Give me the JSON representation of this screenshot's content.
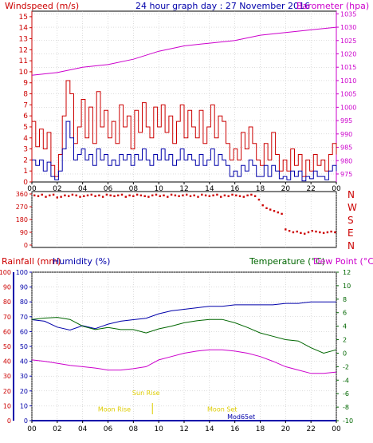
{
  "title": "24 hour graph day : 27 November 2016",
  "colors": {
    "red": "#cc0000",
    "blue": "#0000aa",
    "magenta": "#cc00cc",
    "green": "#006600",
    "rainblue": "#0000aa",
    "yellow": "#ddcc00",
    "grid": "#bbbbbb",
    "frame": "#000000"
  },
  "x_tick_labels": [
    "00",
    "02",
    "04",
    "06",
    "08",
    "10",
    "12",
    "14",
    "16",
    "18",
    "20",
    "22",
    "00"
  ],
  "chart_data": [
    {
      "type": "line",
      "name": "wind",
      "ylabel_left": "Windspeed (m/s)",
      "ylabel_right": "Barometer (hpa)",
      "left_ticks": [
        "0",
        "1",
        "2",
        "3",
        "4",
        "5",
        "6",
        "7",
        "8",
        "9",
        "10",
        "11",
        "12",
        "13",
        "14",
        "15"
      ],
      "right_ticks": [
        "975",
        "980",
        "985",
        "990",
        "995",
        "1000",
        "1005",
        "1010",
        "1015",
        "1020",
        "1025",
        "1030",
        "1035"
      ],
      "ylim_left": [
        0,
        15.5
      ],
      "ylim_right": [
        972,
        1036
      ],
      "xlim": [
        0,
        24
      ],
      "series": [
        {
          "key": "wind_gust",
          "color": "red",
          "x": [
            0,
            0.3,
            0.6,
            0.9,
            1.2,
            1.5,
            1.8,
            2.1,
            2.4,
            2.7,
            3.0,
            3.3,
            3.6,
            3.9,
            4.2,
            4.5,
            4.8,
            5.1,
            5.4,
            5.7,
            6.0,
            6.3,
            6.6,
            6.9,
            7.2,
            7.5,
            7.8,
            8.1,
            8.4,
            8.7,
            9.0,
            9.3,
            9.6,
            9.9,
            10.2,
            10.5,
            10.8,
            11.1,
            11.4,
            11.7,
            12.0,
            12.3,
            12.6,
            12.9,
            13.2,
            13.5,
            13.8,
            14.1,
            14.4,
            14.7,
            15.0,
            15.3,
            15.6,
            15.9,
            16.2,
            16.5,
            16.8,
            17.1,
            17.4,
            17.7,
            18.0,
            18.3,
            18.6,
            18.9,
            19.2,
            19.5,
            19.8,
            20.1,
            20.4,
            20.7,
            21.0,
            21.3,
            21.6,
            21.9,
            22.2,
            22.5,
            22.8,
            23.1,
            23.4,
            23.7,
            24.0
          ],
          "y": [
            5.5,
            3.2,
            4.8,
            3.0,
            4.5,
            1.5,
            0.5,
            2.5,
            6.0,
            9.2,
            8.0,
            3.5,
            5.0,
            7.5,
            4.0,
            6.8,
            3.5,
            8.2,
            5.0,
            6.5,
            4.0,
            5.5,
            3.5,
            7.0,
            5.0,
            6.0,
            3.0,
            6.5,
            4.5,
            7.2,
            5.0,
            4.0,
            6.8,
            5.0,
            7.0,
            4.5,
            6.0,
            3.5,
            5.5,
            7.0,
            4.0,
            6.5,
            5.0,
            4.0,
            6.5,
            3.5,
            5.0,
            7.0,
            4.0,
            6.0,
            5.5,
            3.5,
            2.0,
            3.0,
            2.0,
            4.5,
            3.0,
            5.0,
            3.5,
            2.0,
            1.5,
            3.5,
            2.0,
            4.5,
            2.5,
            1.0,
            2.0,
            1.0,
            3.0,
            1.5,
            2.5,
            0.5,
            2.0,
            1.0,
            2.5,
            1.5,
            2.0,
            1.0,
            2.5,
            3.5,
            2.5
          ]
        },
        {
          "key": "wind_avg",
          "color": "blue",
          "x": [
            0,
            0.3,
            0.6,
            0.9,
            1.2,
            1.5,
            1.8,
            2.1,
            2.4,
            2.7,
            3.0,
            3.3,
            3.6,
            3.9,
            4.2,
            4.5,
            4.8,
            5.1,
            5.4,
            5.7,
            6.0,
            6.3,
            6.6,
            6.9,
            7.2,
            7.5,
            7.8,
            8.1,
            8.4,
            8.7,
            9.0,
            9.3,
            9.6,
            9.9,
            10.2,
            10.5,
            10.8,
            11.1,
            11.4,
            11.7,
            12.0,
            12.3,
            12.6,
            12.9,
            13.2,
            13.5,
            13.8,
            14.1,
            14.4,
            14.7,
            15.0,
            15.3,
            15.6,
            15.9,
            16.2,
            16.5,
            16.8,
            17.1,
            17.4,
            17.7,
            18.0,
            18.3,
            18.6,
            18.9,
            19.2,
            19.5,
            19.8,
            20.1,
            20.4,
            20.7,
            21.0,
            21.3,
            21.6,
            21.9,
            22.2,
            22.5,
            22.8,
            23.1,
            23.4,
            23.7,
            24.0
          ],
          "y": [
            2.0,
            1.5,
            2.0,
            1.0,
            1.8,
            0.5,
            0.2,
            1.0,
            3.0,
            5.5,
            4.0,
            2.0,
            2.5,
            3.0,
            2.0,
            2.5,
            1.5,
            3.0,
            2.0,
            2.5,
            1.5,
            2.0,
            1.5,
            2.5,
            2.0,
            2.5,
            1.5,
            2.5,
            2.0,
            3.0,
            2.0,
            1.5,
            2.5,
            2.0,
            3.0,
            2.0,
            2.5,
            1.5,
            2.0,
            3.0,
            2.0,
            2.5,
            2.0,
            1.5,
            2.5,
            1.5,
            2.0,
            3.0,
            1.5,
            2.5,
            2.0,
            1.5,
            0.5,
            1.0,
            0.5,
            1.5,
            1.0,
            2.0,
            1.5,
            0.5,
            0.5,
            1.5,
            0.5,
            1.5,
            1.0,
            0.3,
            0.5,
            0.2,
            1.0,
            0.5,
            1.0,
            0.1,
            0.5,
            0.3,
            1.0,
            0.5,
            0.5,
            0.2,
            1.0,
            1.5,
            1.0
          ]
        },
        {
          "key": "barometer",
          "color": "magenta",
          "axis": "right",
          "x": [
            0,
            2,
            4,
            6,
            8,
            10,
            12,
            14,
            16,
            18,
            20,
            22,
            24
          ],
          "y": [
            1012,
            1013,
            1015,
            1016,
            1018,
            1021,
            1023,
            1024,
            1025,
            1027,
            1028,
            1029,
            1030
          ]
        }
      ]
    },
    {
      "type": "scatter",
      "name": "wind_direction",
      "direction_ticks": [
        "360",
        "270",
        "180",
        "90",
        "0"
      ],
      "direction_labels": [
        "N",
        "W",
        "S",
        "E",
        "N"
      ],
      "ylim": [
        0,
        360
      ],
      "xlim": [
        0,
        24
      ],
      "series": [
        {
          "key": "direction",
          "color": "red",
          "x": [
            0.2,
            0.5,
            0.8,
            1.1,
            1.4,
            1.7,
            2.0,
            2.3,
            2.6,
            2.9,
            3.2,
            3.5,
            3.8,
            4.1,
            4.4,
            4.7,
            5.0,
            5.3,
            5.6,
            5.9,
            6.2,
            6.5,
            6.8,
            7.1,
            7.4,
            7.7,
            8.0,
            8.3,
            8.6,
            8.9,
            9.2,
            9.5,
            9.8,
            10.1,
            10.4,
            10.7,
            11.0,
            11.3,
            11.6,
            11.9,
            12.2,
            12.5,
            12.8,
            13.1,
            13.4,
            13.7,
            14.0,
            14.3,
            14.6,
            14.9,
            15.2,
            15.5,
            15.8,
            16.1,
            16.4,
            16.7,
            17.0,
            17.3,
            17.6,
            17.9,
            18.2,
            18.5,
            18.8,
            19.1,
            19.4,
            19.7,
            20.0,
            20.3,
            20.6,
            20.9,
            21.2,
            21.5,
            21.8,
            22.1,
            22.4,
            22.7,
            23.0,
            23.3,
            23.6,
            23.9
          ],
          "y": [
            350,
            345,
            355,
            340,
            350,
            355,
            335,
            340,
            350,
            345,
            355,
            350,
            340,
            345,
            350,
            355,
            345,
            350,
            340,
            355,
            350,
            345,
            350,
            355,
            340,
            350,
            345,
            355,
            350,
            345,
            340,
            350,
            355,
            345,
            350,
            340,
            355,
            350,
            345,
            350,
            355,
            345,
            350,
            340,
            355,
            350,
            345,
            350,
            355,
            340,
            350,
            345,
            355,
            350,
            345,
            340,
            350,
            355,
            345,
            320,
            280,
            260,
            250,
            240,
            230,
            220,
            110,
            100,
            90,
            95,
            85,
            80,
            90,
            100,
            95,
            90,
            85,
            90,
            95,
            90
          ]
        }
      ]
    },
    {
      "type": "line",
      "name": "temp_humidity_rain",
      "ylabel_rain": "Rainfall (mm)",
      "ylabel_humidity": "Humidity (%)",
      "ylabel_temp": "Temperature (°C)",
      "ylabel_dew": "Dew Point (°C)",
      "rain_ticks": [
        "0",
        "10",
        "20",
        "30",
        "40",
        "50",
        "60",
        "70",
        "80",
        "90",
        "100"
      ],
      "humidity_ticks": [
        "0",
        "10",
        "20",
        "30",
        "40",
        "50",
        "60",
        "70",
        "80",
        "90",
        "100"
      ],
      "temp_ticks": [
        "-10",
        "-8",
        "-6",
        "-4",
        "-2",
        "0",
        "2",
        "4",
        "6",
        "8",
        "10",
        "12"
      ],
      "ylim_humidity": [
        0,
        100
      ],
      "ylim_temp": [
        -10,
        12
      ],
      "xlim": [
        0,
        24
      ],
      "annotations": [
        {
          "text": "Moon Rise",
          "x": 6.5,
          "y_pct": 5
        },
        {
          "text": "Sun Rise",
          "x": 9.0,
          "y_pct": 16
        },
        {
          "text": "Moon Set",
          "x": 15.0,
          "y_pct": 5
        },
        {
          "text": "Mod65et",
          "x": 16.5,
          "y_pct": 0
        }
      ],
      "series": [
        {
          "key": "humidity",
          "color": "blue",
          "x": [
            0,
            1,
            2,
            3,
            4,
            5,
            6,
            7,
            8,
            9,
            10,
            11,
            12,
            13,
            14,
            15,
            16,
            17,
            18,
            19,
            20,
            21,
            22,
            23,
            24
          ],
          "y": [
            68,
            67,
            63,
            61,
            64,
            62,
            65,
            67,
            68,
            69,
            72,
            74,
            75,
            76,
            77,
            77,
            78,
            78,
            78,
            78,
            79,
            79,
            80,
            80,
            80
          ]
        },
        {
          "key": "temperature",
          "color": "green",
          "x": [
            0,
            1,
            2,
            3,
            4,
            5,
            6,
            7,
            8,
            9,
            10,
            11,
            12,
            13,
            14,
            15,
            16,
            17,
            18,
            19,
            20,
            21,
            22,
            23,
            24
          ],
          "y": [
            5.0,
            5.2,
            5.3,
            5.0,
            4.0,
            3.5,
            3.8,
            3.5,
            3.5,
            3.0,
            3.6,
            4.0,
            4.5,
            4.8,
            5.0,
            5.0,
            4.5,
            3.8,
            3.0,
            2.5,
            2.0,
            1.8,
            0.8,
            0.0,
            0.5
          ]
        },
        {
          "key": "dew_point",
          "color": "magenta",
          "x": [
            0,
            1,
            2,
            3,
            4,
            5,
            6,
            7,
            8,
            9,
            10,
            11,
            12,
            13,
            14,
            15,
            16,
            17,
            18,
            19,
            20,
            21,
            22,
            23,
            24
          ],
          "y": [
            -1.0,
            -1.2,
            -1.5,
            -1.8,
            -2.0,
            -2.2,
            -2.5,
            -2.5,
            -2.3,
            -2.0,
            -1.0,
            -0.5,
            0.0,
            0.3,
            0.5,
            0.5,
            0.3,
            0.0,
            -0.5,
            -1.2,
            -2.0,
            -2.5,
            -3.0,
            -3.0,
            -2.8
          ]
        },
        {
          "key": "rainfall",
          "color": "rainblue",
          "x": [
            0,
            24
          ],
          "y": [
            0,
            0
          ]
        }
      ]
    }
  ]
}
